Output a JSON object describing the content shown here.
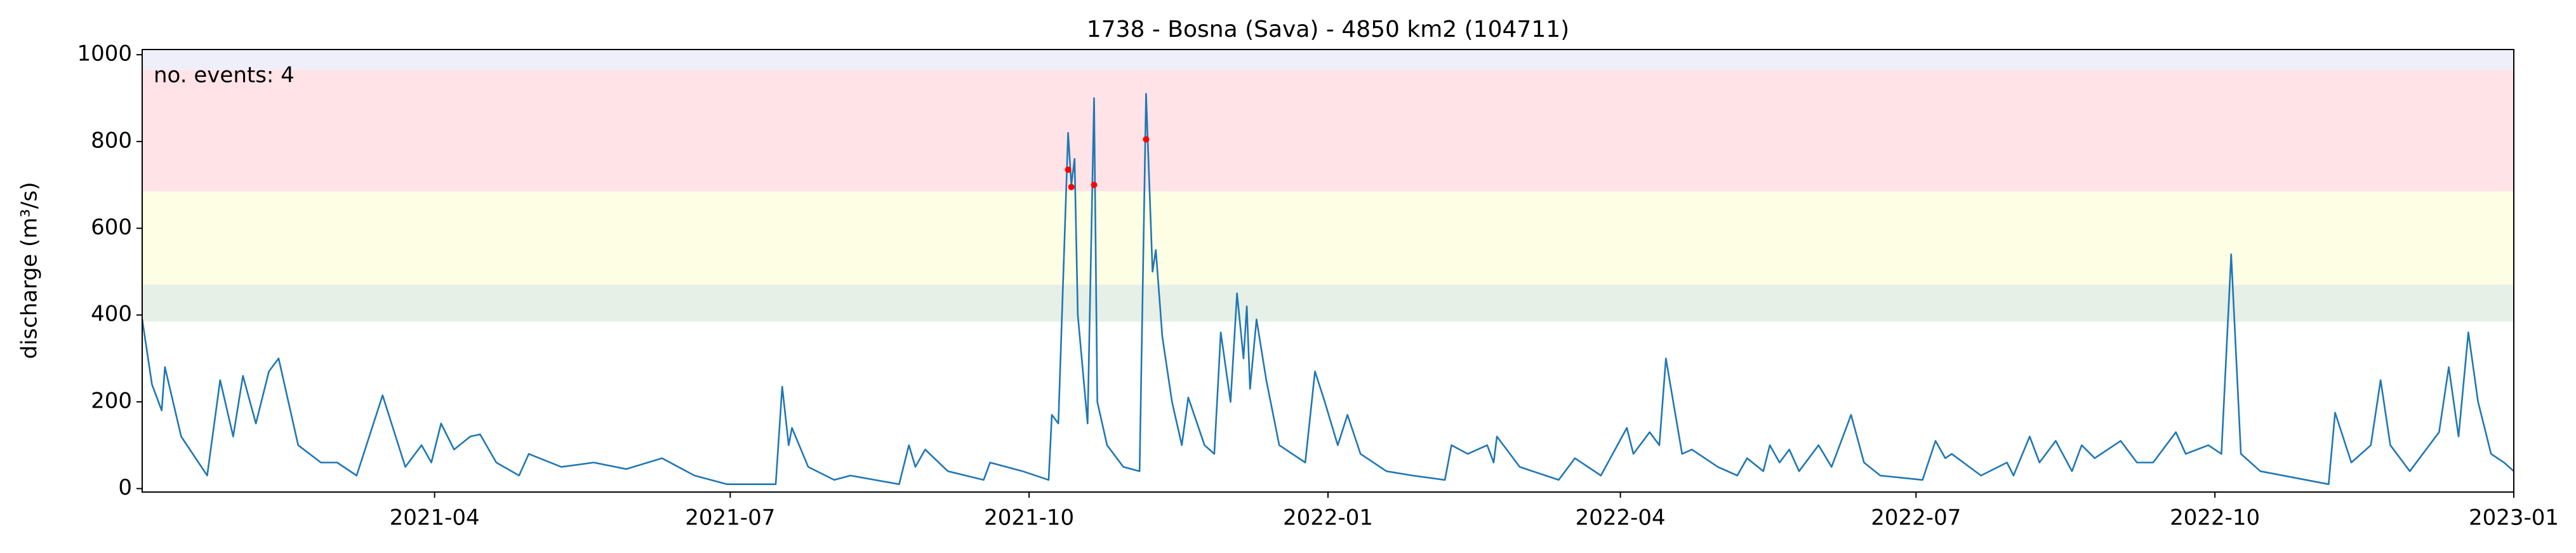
{
  "chart_data": {
    "type": "line",
    "title": "1738 - Bosna (Sava) - 4850 km2 (104711)",
    "ylabel": "discharge (m³/s)",
    "annotation": "no. events: 4",
    "annotation_color": "#e00000",
    "color": "#1f77b4",
    "xlim": [
      0,
      730
    ],
    "xticks": [
      {
        "value": 90,
        "label": "2021-04"
      },
      {
        "value": 181,
        "label": "2021-07"
      },
      {
        "value": 273,
        "label": "2021-10"
      },
      {
        "value": 365,
        "label": "2022-01"
      },
      {
        "value": 455,
        "label": "2022-04"
      },
      {
        "value": 546,
        "label": "2022-07"
      },
      {
        "value": 638,
        "label": "2022-10"
      },
      {
        "value": 730,
        "label": "2023-01"
      }
    ],
    "ylim": [
      -8,
      1012
    ],
    "yticks": [
      0,
      200,
      400,
      600,
      800,
      1000
    ],
    "bands": [
      {
        "from": 385,
        "to": 470,
        "color": "#e6f0e6"
      },
      {
        "from": 470,
        "to": 685,
        "color": "#fefee4"
      },
      {
        "from": 685,
        "to": 965,
        "color": "#ffe3e7"
      },
      {
        "from": 965,
        "to": 1012,
        "color": "#efeff9"
      }
    ],
    "x": [
      0,
      3,
      6,
      7,
      12,
      20,
      24,
      28,
      31,
      35,
      39,
      42,
      48,
      55,
      60,
      66,
      74,
      81,
      86,
      89,
      92,
      96,
      101,
      104,
      109,
      116,
      119,
      129,
      139,
      149,
      160,
      170,
      180,
      195,
      197,
      199,
      200,
      205,
      213,
      218,
      233,
      236,
      238,
      241,
      248,
      259,
      261,
      271,
      279,
      280,
      282,
      285,
      286,
      287,
      288,
      291,
      293,
      294,
      297,
      302,
      307,
      309,
      311,
      312,
      314,
      317,
      320,
      322,
      327,
      330,
      332,
      335,
      337,
      339,
      340,
      341,
      343,
      346,
      350,
      358,
      361,
      364,
      368,
      371,
      375,
      383,
      391,
      401,
      403,
      408,
      414,
      416,
      417,
      424,
      436,
      441,
      449,
      457,
      459,
      464,
      467,
      469,
      474,
      477,
      485,
      491,
      494,
      499,
      501,
      504,
      507,
      510,
      516,
      520,
      526,
      530,
      535,
      548,
      552,
      555,
      557,
      566,
      574,
      576,
      581,
      584,
      589,
      594,
      597,
      601,
      609,
      614,
      619,
      626,
      629,
      636,
      640,
      643,
      646,
      652,
      673,
      675,
      680,
      686,
      689,
      692,
      698,
      707,
      710,
      713,
      716,
      719,
      723,
      727,
      730
    ],
    "values": [
      390,
      240,
      180,
      280,
      120,
      30,
      250,
      120,
      260,
      150,
      270,
      300,
      100,
      60,
      60,
      30,
      215,
      50,
      100,
      60,
      150,
      90,
      120,
      125,
      60,
      30,
      80,
      50,
      60,
      45,
      70,
      30,
      10,
      10,
      235,
      100,
      140,
      50,
      20,
      30,
      10,
      100,
      50,
      90,
      40,
      20,
      60,
      40,
      20,
      170,
      150,
      820,
      700,
      760,
      400,
      150,
      900,
      200,
      100,
      50,
      40,
      910,
      500,
      550,
      350,
      200,
      100,
      210,
      100,
      80,
      360,
      200,
      450,
      300,
      420,
      230,
      390,
      250,
      100,
      60,
      270,
      200,
      100,
      170,
      80,
      40,
      30,
      20,
      100,
      80,
      100,
      60,
      120,
      50,
      20,
      70,
      30,
      140,
      80,
      130,
      100,
      300,
      80,
      90,
      50,
      30,
      70,
      40,
      100,
      60,
      90,
      40,
      100,
      50,
      170,
      60,
      30,
      20,
      110,
      70,
      80,
      30,
      60,
      30,
      120,
      60,
      110,
      40,
      100,
      70,
      110,
      60,
      60,
      130,
      80,
      100,
      80,
      540,
      80,
      40,
      10,
      175,
      60,
      100,
      250,
      100,
      40,
      130,
      280,
      120,
      360,
      200,
      80,
      60,
      40
    ],
    "events": {
      "color": "#ff0000",
      "x": [
        285,
        286,
        293,
        309
      ],
      "values": [
        735,
        695,
        700,
        805
      ]
    }
  }
}
